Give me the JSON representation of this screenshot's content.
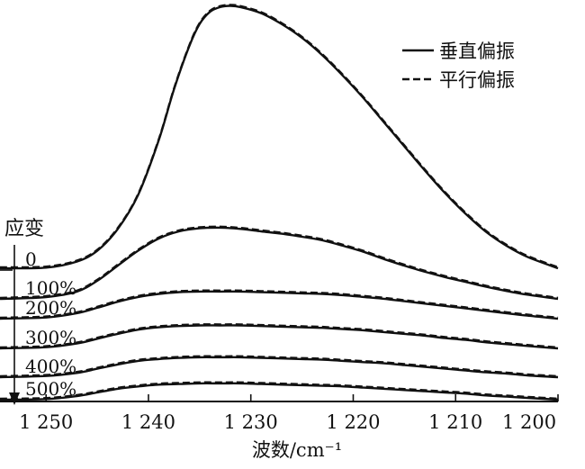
{
  "chart_data": {
    "type": "line",
    "xlabel": "波数/cm⁻¹",
    "xlim": [
      1254.5,
      1200
    ],
    "x_ticks": [
      {
        "value": 1250,
        "label": "1 250"
      },
      {
        "value": 1240,
        "label": "1 240"
      },
      {
        "value": 1230,
        "label": "1 230"
      },
      {
        "value": 1220,
        "label": "1 220"
      },
      {
        "value": 1210,
        "label": "1 210"
      },
      {
        "value": 1200,
        "label": "1 200"
      }
    ],
    "y_axis_visible": false,
    "grid": false,
    "legend": {
      "position": "top-right",
      "entries": [
        {
          "label": "垂直偏振",
          "style": "solid"
        },
        {
          "label": "平行偏振",
          "style": "dashed"
        }
      ]
    },
    "strain_title": "应变",
    "strain_arrow": "down",
    "series": [
      {
        "name": "0",
        "x": [
          1254.5,
          1250,
          1247,
          1245,
          1243,
          1241,
          1239,
          1237.5,
          1236,
          1235,
          1234,
          1233,
          1232,
          1231,
          1229,
          1227,
          1225,
          1223,
          1221,
          1219,
          1217,
          1215,
          1213,
          1211,
          1209,
          1207,
          1205,
          1203,
          1200
        ],
        "y": [
          0.03,
          0.04,
          0.14,
          0.32,
          0.68,
          1.25,
          2.15,
          3.0,
          3.72,
          4.08,
          4.28,
          4.36,
          4.38,
          4.36,
          4.26,
          4.08,
          3.85,
          3.56,
          3.22,
          2.85,
          2.45,
          2.05,
          1.65,
          1.27,
          0.93,
          0.63,
          0.4,
          0.22,
          0.03
        ]
      },
      {
        "name": "100%",
        "offset_pct": 100,
        "x": [
          1254.5,
          1250,
          1247,
          1245,
          1243,
          1241,
          1239,
          1237,
          1235,
          1233,
          1231,
          1229,
          1227,
          1225,
          1223,
          1221,
          1219,
          1217,
          1215,
          1213,
          1211,
          1209,
          1207,
          1205,
          1203,
          1200
        ],
        "y": [
          0.0,
          0.03,
          0.12,
          0.3,
          0.55,
          0.8,
          1.0,
          1.12,
          1.17,
          1.18,
          1.16,
          1.12,
          1.08,
          1.03,
          0.97,
          0.88,
          0.78,
          0.66,
          0.55,
          0.45,
          0.36,
          0.28,
          0.2,
          0.13,
          0.07,
          0.0
        ]
      },
      {
        "name": "200%",
        "offset_pct": 200,
        "x": [
          1254.5,
          1250,
          1247,
          1245,
          1243,
          1241,
          1239,
          1237,
          1235,
          1233,
          1231,
          1229,
          1227,
          1225,
          1223,
          1221,
          1219,
          1217,
          1215,
          1213,
          1211,
          1209,
          1207,
          1205,
          1203,
          1200
        ],
        "y": [
          0.0,
          0.02,
          0.09,
          0.18,
          0.28,
          0.36,
          0.41,
          0.44,
          0.45,
          0.45,
          0.45,
          0.44,
          0.43,
          0.42,
          0.41,
          0.39,
          0.36,
          0.33,
          0.29,
          0.25,
          0.21,
          0.17,
          0.13,
          0.09,
          0.05,
          0.0
        ]
      },
      {
        "name": "300%",
        "offset_pct": 300,
        "x": [
          1254.5,
          1250,
          1247,
          1245,
          1243,
          1241,
          1239,
          1237,
          1235,
          1233,
          1231,
          1229,
          1227,
          1225,
          1223,
          1221,
          1219,
          1217,
          1215,
          1213,
          1211,
          1209,
          1207,
          1205,
          1203,
          1200
        ],
        "y": [
          0.0,
          0.02,
          0.08,
          0.16,
          0.24,
          0.31,
          0.35,
          0.37,
          0.38,
          0.38,
          0.38,
          0.37,
          0.36,
          0.35,
          0.34,
          0.32,
          0.3,
          0.27,
          0.24,
          0.21,
          0.17,
          0.14,
          0.1,
          0.07,
          0.04,
          0.0
        ]
      },
      {
        "name": "400%",
        "offset_pct": 400,
        "x": [
          1254.5,
          1250,
          1247,
          1245,
          1243,
          1241,
          1239,
          1237,
          1235,
          1233,
          1231,
          1229,
          1227,
          1225,
          1223,
          1221,
          1219,
          1217,
          1215,
          1213,
          1211,
          1209,
          1207,
          1205,
          1203,
          1200
        ],
        "y": [
          0.0,
          0.02,
          0.07,
          0.14,
          0.21,
          0.27,
          0.3,
          0.32,
          0.33,
          0.33,
          0.33,
          0.32,
          0.31,
          0.3,
          0.29,
          0.27,
          0.25,
          0.23,
          0.2,
          0.17,
          0.14,
          0.11,
          0.08,
          0.06,
          0.03,
          0.0
        ]
      },
      {
        "name": "500%",
        "offset_pct": 500,
        "x": [
          1254.5,
          1250,
          1247,
          1245,
          1243,
          1241,
          1239,
          1237,
          1235,
          1233,
          1231,
          1229,
          1227,
          1225,
          1223,
          1221,
          1219,
          1217,
          1215,
          1213,
          1211,
          1209,
          1207,
          1205,
          1203,
          1200
        ],
        "y": [
          0.0,
          0.01,
          0.06,
          0.12,
          0.18,
          0.22,
          0.25,
          0.26,
          0.27,
          0.27,
          0.27,
          0.26,
          0.25,
          0.24,
          0.23,
          0.22,
          0.2,
          0.18,
          0.16,
          0.14,
          0.12,
          0.1,
          0.07,
          0.05,
          0.03,
          0.0
        ]
      }
    ]
  }
}
